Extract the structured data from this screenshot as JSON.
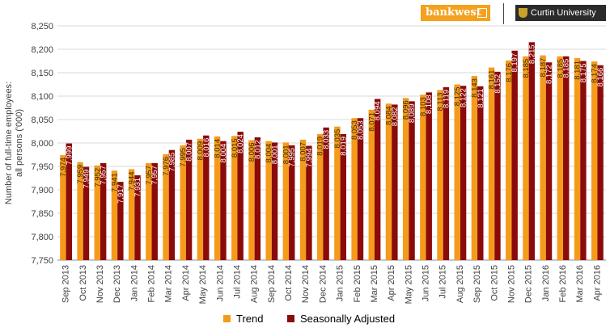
{
  "brand": {
    "bankwest_label": "bankwest",
    "curtin_label": "Curtin University"
  },
  "colors": {
    "trend": "#f59b1b",
    "seasonally_adjusted": "#8b0a0a",
    "grid": "#d9d9d9",
    "axis_text": "#404040"
  },
  "chart_data": {
    "type": "bar",
    "title": "",
    "xlabel": "",
    "ylabel": "Number of full-time employees:\nall persons ('000)",
    "ylim": [
      7750,
      8250
    ],
    "yticks": [
      7750,
      7800,
      7850,
      7900,
      7950,
      8000,
      8050,
      8100,
      8150,
      8200,
      8250
    ],
    "ytick_labels": [
      "7,750",
      "7,800",
      "7,850",
      "7,900",
      "7,950",
      "8,000",
      "8,050",
      "8,100",
      "8,150",
      "8,200",
      "8,250"
    ],
    "grid": true,
    "legend_position": "bottom",
    "categories": [
      "Sep 2013",
      "Oct 2013",
      "Nov 2013",
      "Dec 2013",
      "Jan 2014",
      "Feb 2014",
      "Mar 2014",
      "Apr 2014",
      "May 2014",
      "Jun 2014",
      "Jul 2014",
      "Aug 2014",
      "Sep 2014",
      "Oct 2014",
      "Nov 2014",
      "Dec 2014",
      "Jan 2015",
      "Feb 2015",
      "Mar 2015",
      "Apr 2015",
      "May 2015",
      "Jun 2015",
      "Jul 2015",
      "Aug 2015",
      "Sep 2015",
      "Oct 2015",
      "Nov 2015",
      "Dec 2015",
      "Jan 2016",
      "Feb 2016",
      "Mar 2016",
      "Apr 2016"
    ],
    "series": [
      {
        "name": "Trend",
        "values": [
          7974,
          7959,
          7952,
          7941,
          7944,
          7957,
          7976,
          7995,
          8009,
          8014,
          8015,
          8006,
          8004,
          8001,
          8007,
          8019,
          8035,
          8053,
          8071,
          8084,
          8096,
          8103,
          8113,
          8125,
          8143,
          8161,
          8176,
          8185,
          8187,
          8185,
          8181,
          8174
        ],
        "data_labels": [
          "7,974",
          "7,959",
          "7,952",
          "7,941",
          "7,944",
          "7,957",
          "7,976",
          "7,995",
          "8,009",
          "8,014",
          "8,015",
          "8,006",
          "8,004",
          "8,001",
          "8,007",
          "8,019",
          "8,035",
          "8,053",
          "8,071",
          "8,084",
          "8,096",
          "8,103",
          "8,113",
          "8,125",
          "8,143",
          "8,161",
          "8,176",
          "8,185",
          "8,187",
          "8,185",
          "8,181",
          "8,174"
        ]
      },
      {
        "name": "Seasonally Adjusted",
        "values": [
          7999,
          7949,
          7957,
          7917,
          7931,
          7957,
          7985,
          8007,
          8016,
          8004,
          8024,
          8012,
          8001,
          7995,
          7994,
          8033,
          8019,
          8053,
          8094,
          8082,
          8089,
          8108,
          8119,
          8122,
          8121,
          8152,
          8197,
          8215,
          8172,
          8185,
          8175,
          8166
        ],
        "data_labels": [
          "7,999",
          "7,949",
          "7,957",
          "7,917",
          "7,931",
          "7,957",
          "7,985",
          "8,007",
          "8,016",
          "8,004",
          "8,024",
          "8,012",
          "8,001",
          "7,995",
          "7,994",
          "8,033",
          "8,019",
          "8,053",
          "8,094",
          "8,082",
          "8,089",
          "8,108",
          "8,119",
          "8,122",
          "8,121",
          "8,152",
          "8,197",
          "8,215",
          "8,172",
          "8,185",
          "8,175",
          "8,166"
        ]
      }
    ]
  }
}
